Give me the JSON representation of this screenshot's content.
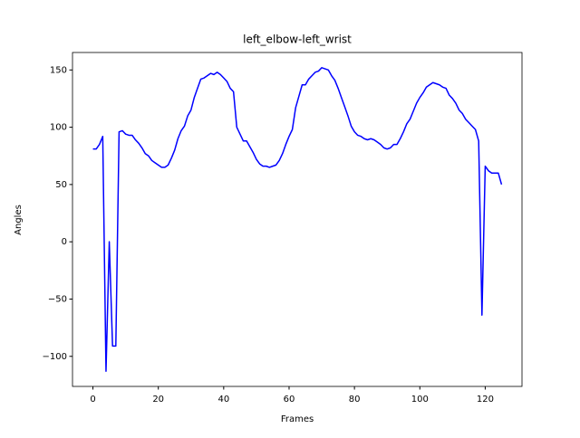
{
  "chart_data": {
    "type": "line",
    "title": "left_elbow-left_wrist",
    "xlabel": "Frames",
    "ylabel": "Angles",
    "x": [
      0,
      1,
      2,
      3,
      4,
      5,
      6,
      7,
      8,
      9,
      10,
      11,
      12,
      13,
      14,
      15,
      16,
      17,
      18,
      19,
      20,
      21,
      22,
      23,
      24,
      25,
      26,
      27,
      28,
      29,
      30,
      31,
      32,
      33,
      34,
      35,
      36,
      37,
      38,
      39,
      40,
      41,
      42,
      43,
      44,
      45,
      46,
      47,
      48,
      49,
      50,
      51,
      52,
      53,
      54,
      55,
      56,
      57,
      58,
      59,
      60,
      61,
      62,
      63,
      64,
      65,
      66,
      67,
      68,
      69,
      70,
      71,
      72,
      73,
      74,
      75,
      76,
      77,
      78,
      79,
      80,
      81,
      82,
      83,
      84,
      85,
      86,
      87,
      88,
      89,
      90,
      91,
      92,
      93,
      94,
      95,
      96,
      97,
      98,
      99,
      100,
      101,
      102,
      103,
      104,
      105,
      106,
      107,
      108,
      109,
      110,
      111,
      112,
      113,
      114,
      115,
      116,
      117,
      118,
      119,
      120,
      121,
      122,
      123,
      124,
      125
    ],
    "values": [
      81,
      81,
      85,
      92,
      -113,
      0,
      -91,
      -91,
      96,
      97,
      94,
      93,
      93,
      89,
      86,
      82,
      77,
      75,
      71,
      69,
      67,
      65,
      65,
      67,
      73,
      80,
      90,
      97,
      101,
      110,
      115,
      126,
      134,
      142,
      143,
      145,
      147,
      146,
      148,
      146,
      143,
      140,
      134,
      131,
      100,
      94,
      88,
      88,
      83,
      78,
      72,
      68,
      66,
      66,
      65,
      66,
      67,
      71,
      77,
      85,
      92,
      98,
      117,
      127,
      137,
      137,
      142,
      145,
      148,
      149,
      152,
      151,
      150,
      145,
      141,
      134,
      126,
      118,
      110,
      101,
      96,
      93,
      92,
      90,
      89,
      90,
      89,
      87,
      85,
      82,
      81,
      82,
      85,
      85,
      90,
      96,
      103,
      107,
      114,
      121,
      126,
      130,
      135,
      137,
      139,
      138,
      137,
      135,
      134,
      128,
      125,
      121,
      115,
      112,
      107,
      104,
      101,
      98,
      88,
      -64,
      66,
      62,
      60,
      60,
      60,
      50
    ],
    "color": "#0000ff",
    "xlim": [
      -6.25,
      131.25
    ],
    "xticks": [
      0,
      20,
      40,
      60,
      80,
      100,
      120
    ],
    "ylim": [
      -126.25,
      165.25
    ],
    "yticks": [
      {
        "value": -100,
        "label": "−100"
      },
      {
        "value": -50,
        "label": "−50"
      },
      0,
      50,
      100,
      150
    ],
    "grid": false
  }
}
